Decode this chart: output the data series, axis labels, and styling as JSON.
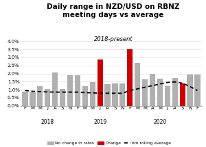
{
  "title": "Daily range in NZD/USD on RBNZ\nmeeting days vs average",
  "subtitle": "2018-present",
  "ylim": [
    0.0,
    0.04
  ],
  "ytick_labels": [
    "0.0%",
    "0.5%",
    "1.0%",
    "1.5%",
    "2.0%",
    "2.5%",
    "3.0%",
    "3.5%",
    "4.0%"
  ],
  "ytick_vals": [
    0.0,
    0.005,
    0.01,
    0.015,
    0.02,
    0.025,
    0.03,
    0.035,
    0.04
  ],
  "bar_labels": [
    "F",
    "M",
    "M",
    "J",
    "A",
    "S",
    "N",
    "F",
    "M",
    "M",
    "J",
    "A",
    "S",
    "N",
    "F",
    "M",
    "M",
    "A",
    "M",
    "J",
    "A",
    "S",
    "N",
    "F"
  ],
  "bar_values": [
    0.009,
    0.0082,
    0.012,
    0.0105,
    0.0205,
    0.0105,
    0.019,
    0.019,
    0.012,
    0.0148,
    0.0285,
    0.0135,
    0.0138,
    0.0138,
    0.035,
    0.0265,
    0.0165,
    0.02,
    0.017,
    0.012,
    0.0172,
    0.014,
    0.0195,
    0.0195
  ],
  "bar_colors": [
    "#b0b0b0",
    "#b0b0b0",
    "#b0b0b0",
    "#b0b0b0",
    "#b0b0b0",
    "#b0b0b0",
    "#b0b0b0",
    "#b0b0b0",
    "#b0b0b0",
    "#b0b0b0",
    "#cc0000",
    "#b0b0b0",
    "#b0b0b0",
    "#b0b0b0",
    "#cc0000",
    "#b0b0b0",
    "#b0b0b0",
    "#b0b0b0",
    "#b0b0b0",
    "#b0b0b0",
    "#b0b0b0",
    "#cc0000",
    "#b0b0b0",
    "#b0b0b0"
  ],
  "rolling_avg": [
    0.0095,
    0.009,
    0.0088,
    0.0086,
    0.0085,
    0.0085,
    0.0085,
    0.0085,
    0.0082,
    0.008,
    0.0078,
    0.0078,
    0.0078,
    0.0078,
    0.0095,
    0.0105,
    0.0115,
    0.0125,
    0.0135,
    0.0145,
    0.0148,
    0.014,
    0.012,
    0.0095
  ],
  "year_labels": [
    {
      "text": "2018",
      "x": 3
    },
    {
      "text": "2019",
      "x": 10
    },
    {
      "text": "2020",
      "x": 18
    }
  ],
  "legend_gray": "No change in rates",
  "legend_red": "Change",
  "legend_line": "6m rolling average",
  "bg_color": "#ffffff",
  "bar_gray": "#b0b0b0",
  "bar_red": "#cc0000",
  "line_color": "#000000"
}
